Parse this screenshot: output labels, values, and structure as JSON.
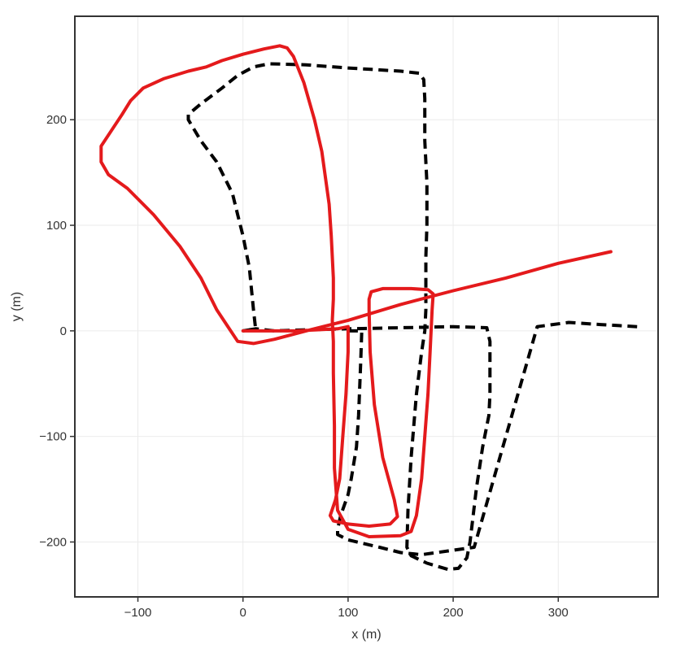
{
  "chart_data": {
    "type": "line",
    "title": "",
    "xlabel": "x (m)",
    "ylabel": "y (m)",
    "xlim": [
      -160,
      395
    ],
    "ylim": [
      -252,
      298
    ],
    "grid": true,
    "xticks": [
      -100,
      0,
      100,
      200,
      300
    ],
    "yticks": [
      -200,
      -100,
      0,
      100,
      200
    ],
    "xtick_labels": [
      "−100",
      "0",
      "100",
      "200",
      "300"
    ],
    "ytick_labels": [
      "−200",
      "−100",
      "0",
      "100",
      "200"
    ],
    "series": [
      {
        "style": "dashed",
        "color": "#000000",
        "points": [
          [
            0,
            0
          ],
          [
            12,
            2
          ],
          [
            10,
            20
          ],
          [
            6,
            60
          ],
          [
            0,
            90
          ],
          [
            -5,
            110
          ],
          [
            -10,
            130
          ],
          [
            -25,
            160
          ],
          [
            -40,
            180
          ],
          [
            -52,
            200
          ],
          [
            -52,
            205
          ],
          [
            -40,
            215
          ],
          [
            -20,
            230
          ],
          [
            -5,
            242
          ],
          [
            10,
            250
          ],
          [
            25,
            253
          ],
          [
            60,
            252
          ],
          [
            100,
            249
          ],
          [
            150,
            246
          ],
          [
            168,
            244
          ],
          [
            172,
            238
          ],
          [
            173,
            220
          ],
          [
            173,
            180
          ],
          [
            175,
            140
          ],
          [
            175,
            100
          ],
          [
            174,
            70
          ],
          [
            174,
            40
          ],
          [
            174,
            20
          ],
          [
            173,
            0
          ],
          [
            170,
            -20
          ],
          [
            165,
            -60
          ],
          [
            160,
            -120
          ],
          [
            157,
            -170
          ],
          [
            156,
            -205
          ],
          [
            160,
            -213
          ],
          [
            175,
            -220
          ],
          [
            195,
            -226
          ],
          [
            205,
            -225
          ],
          [
            213,
            -215
          ],
          [
            216,
            -200
          ],
          [
            222,
            -150
          ],
          [
            228,
            -110
          ],
          [
            234,
            -80
          ],
          [
            235,
            -60
          ],
          [
            235,
            -10
          ],
          [
            232,
            3
          ],
          [
            200,
            4
          ],
          [
            150,
            3
          ],
          [
            100,
            2
          ],
          [
            60,
            1
          ],
          [
            30,
            0
          ],
          [
            12,
            2
          ],
          [
            0,
            0
          ]
        ]
      },
      {
        "style": "dashed",
        "color": "#000000",
        "points": [
          [
            100,
            0
          ],
          [
            113,
            0
          ],
          [
            112,
            -30
          ],
          [
            110,
            -80
          ],
          [
            108,
            -110
          ],
          [
            103,
            -140
          ],
          [
            100,
            -155
          ],
          [
            93,
            -175
          ],
          [
            90,
            -188
          ],
          [
            90,
            -193
          ],
          [
            100,
            -198
          ],
          [
            130,
            -205
          ],
          [
            150,
            -210
          ],
          [
            170,
            -212
          ],
          [
            220,
            -205
          ],
          [
            280,
            4
          ],
          [
            310,
            8
          ],
          [
            340,
            6
          ],
          [
            375,
            4
          ]
        ]
      },
      {
        "style": "solid",
        "color": "#e41a1c",
        "points": [
          [
            0,
            0
          ],
          [
            20,
            0
          ],
          [
            50,
            0
          ],
          [
            70,
            1
          ],
          [
            90,
            2
          ],
          [
            100,
            4
          ],
          [
            100,
            -20
          ],
          [
            98,
            -60
          ],
          [
            95,
            -100
          ],
          [
            92,
            -140
          ],
          [
            88,
            -160
          ],
          [
            83,
            -175
          ],
          [
            86,
            -180
          ],
          [
            100,
            -183
          ],
          [
            120,
            -185
          ],
          [
            140,
            -183
          ],
          [
            147,
            -176
          ],
          [
            144,
            -160
          ],
          [
            133,
            -120
          ],
          [
            125,
            -70
          ],
          [
            121,
            -20
          ],
          [
            120,
            20
          ],
          [
            120,
            30
          ],
          [
            122,
            37
          ],
          [
            133,
            40
          ],
          [
            160,
            40
          ],
          [
            176,
            39
          ],
          [
            181,
            35
          ],
          [
            180,
            20
          ],
          [
            178,
            -20
          ],
          [
            176,
            -60
          ],
          [
            173,
            -100
          ],
          [
            170,
            -140
          ],
          [
            165,
            -175
          ],
          [
            160,
            -190
          ],
          [
            150,
            -194
          ],
          [
            120,
            -195
          ],
          [
            100,
            -188
          ],
          [
            90,
            -170
          ],
          [
            87,
            -130
          ],
          [
            87,
            -90
          ],
          [
            86,
            -40
          ],
          [
            86,
            -10
          ],
          [
            85,
            10
          ],
          [
            86,
            30
          ],
          [
            86,
            50
          ],
          [
            84,
            90
          ],
          [
            82,
            120
          ],
          [
            75,
            170
          ],
          [
            68,
            200
          ],
          [
            58,
            235
          ],
          [
            48,
            260
          ],
          [
            42,
            268
          ],
          [
            35,
            270
          ],
          [
            20,
            267
          ],
          [
            0,
            262
          ],
          [
            -20,
            256
          ],
          [
            -35,
            250
          ],
          [
            -52,
            246
          ],
          [
            -75,
            239
          ],
          [
            -95,
            230
          ],
          [
            -107,
            218
          ],
          [
            -115,
            205
          ],
          [
            -125,
            190
          ],
          [
            -135,
            175
          ],
          [
            -135,
            160
          ],
          [
            -128,
            148
          ],
          [
            -110,
            135
          ],
          [
            -85,
            110
          ],
          [
            -60,
            80
          ],
          [
            -40,
            50
          ],
          [
            -25,
            20
          ],
          [
            -15,
            5
          ],
          [
            -5,
            -10
          ],
          [
            10,
            -12
          ],
          [
            30,
            -8
          ],
          [
            60,
            0
          ],
          [
            100,
            10
          ],
          [
            150,
            25
          ],
          [
            200,
            38
          ],
          [
            250,
            50
          ],
          [
            300,
            64
          ],
          [
            350,
            75
          ]
        ]
      }
    ]
  }
}
